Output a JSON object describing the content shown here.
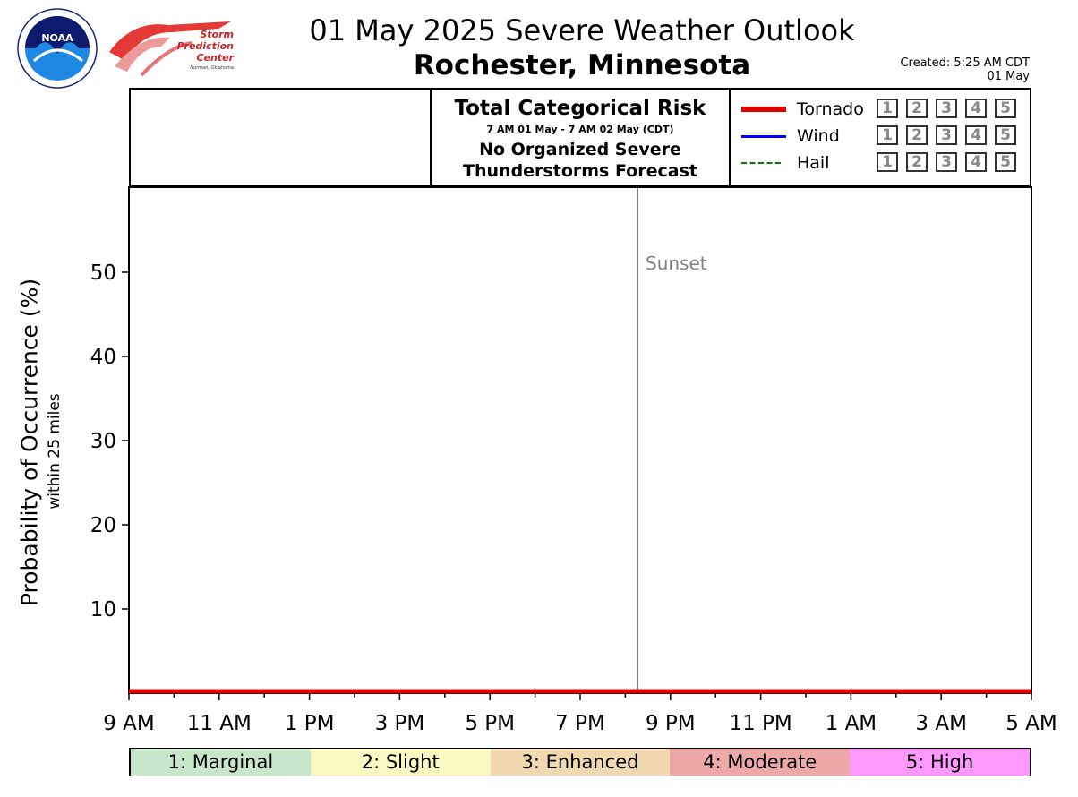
{
  "logos": {
    "noaa_text": "NOAA",
    "noaa_ring_text": "NATIONAL OCEANIC AND ATMOSPHERIC ADMINISTRATION · U.S. DEPARTMENT OF COMMERCE",
    "spc_line1": "Storm",
    "spc_line2": "Prediction",
    "spc_line3": "Center",
    "spc_line4": "Norman, Oklahoma"
  },
  "header": {
    "title": "01 May 2025 Severe Weather Outlook",
    "location": "Rochester, Minnesota",
    "created_line1": "Created: 5:25 AM CDT",
    "created_line2": "01 May"
  },
  "risk_panel": {
    "title": "Total Categorical Risk",
    "period": "7 AM 01 May - 7 AM 02 May (CDT)",
    "text_line1": "No Organized Severe",
    "text_line2": "Thunderstorms Forecast"
  },
  "legend": [
    {
      "label": "Tornado",
      "color": "#dd0000",
      "style": "solid-thick",
      "boxes": [
        "1",
        "2",
        "3",
        "4",
        "5"
      ]
    },
    {
      "label": "Wind",
      "color": "#0000ff",
      "style": "solid",
      "boxes": [
        "1",
        "2",
        "3",
        "4",
        "5"
      ]
    },
    {
      "label": "Hail",
      "color": "#008000",
      "style": "dashed",
      "boxes": [
        "1",
        "2",
        "3",
        "4",
        "5"
      ]
    }
  ],
  "chart_data": {
    "type": "line",
    "ylabel": "Probability of Occurrence (%)",
    "ylabel_sub": "within 25 miles",
    "ylim": [
      0,
      60
    ],
    "yticks": [
      10,
      20,
      30,
      40,
      50
    ],
    "x_ticks_hours": [
      0,
      2,
      4,
      6,
      8,
      10,
      12,
      14,
      16,
      18,
      20
    ],
    "x_tick_labels": [
      "9 AM",
      "11 AM",
      "1 PM",
      "3 PM",
      "5 PM",
      "7 PM",
      "9 PM",
      "11 PM",
      "1 AM",
      "3 AM",
      "5 AM"
    ],
    "xlim_hours": [
      0,
      20
    ],
    "series": [
      {
        "name": "Tornado",
        "color": "#dd0000",
        "x": [
          0,
          20
        ],
        "y": [
          0,
          0
        ]
      }
    ],
    "annotations": [
      {
        "label": "Sunset",
        "x_hours": 11.27,
        "color": "#808080"
      }
    ],
    "grid": false
  },
  "categories": [
    {
      "label": "1: Marginal",
      "color": "#c8e6c9"
    },
    {
      "label": "2: Slight",
      "color": "#f8f8c0"
    },
    {
      "label": "3: Enhanced",
      "color": "#f0d8b0"
    },
    {
      "label": "4: Moderate",
      "color": "#eea8a8"
    },
    {
      "label": "5: High",
      "color": "#ff99ff"
    }
  ]
}
